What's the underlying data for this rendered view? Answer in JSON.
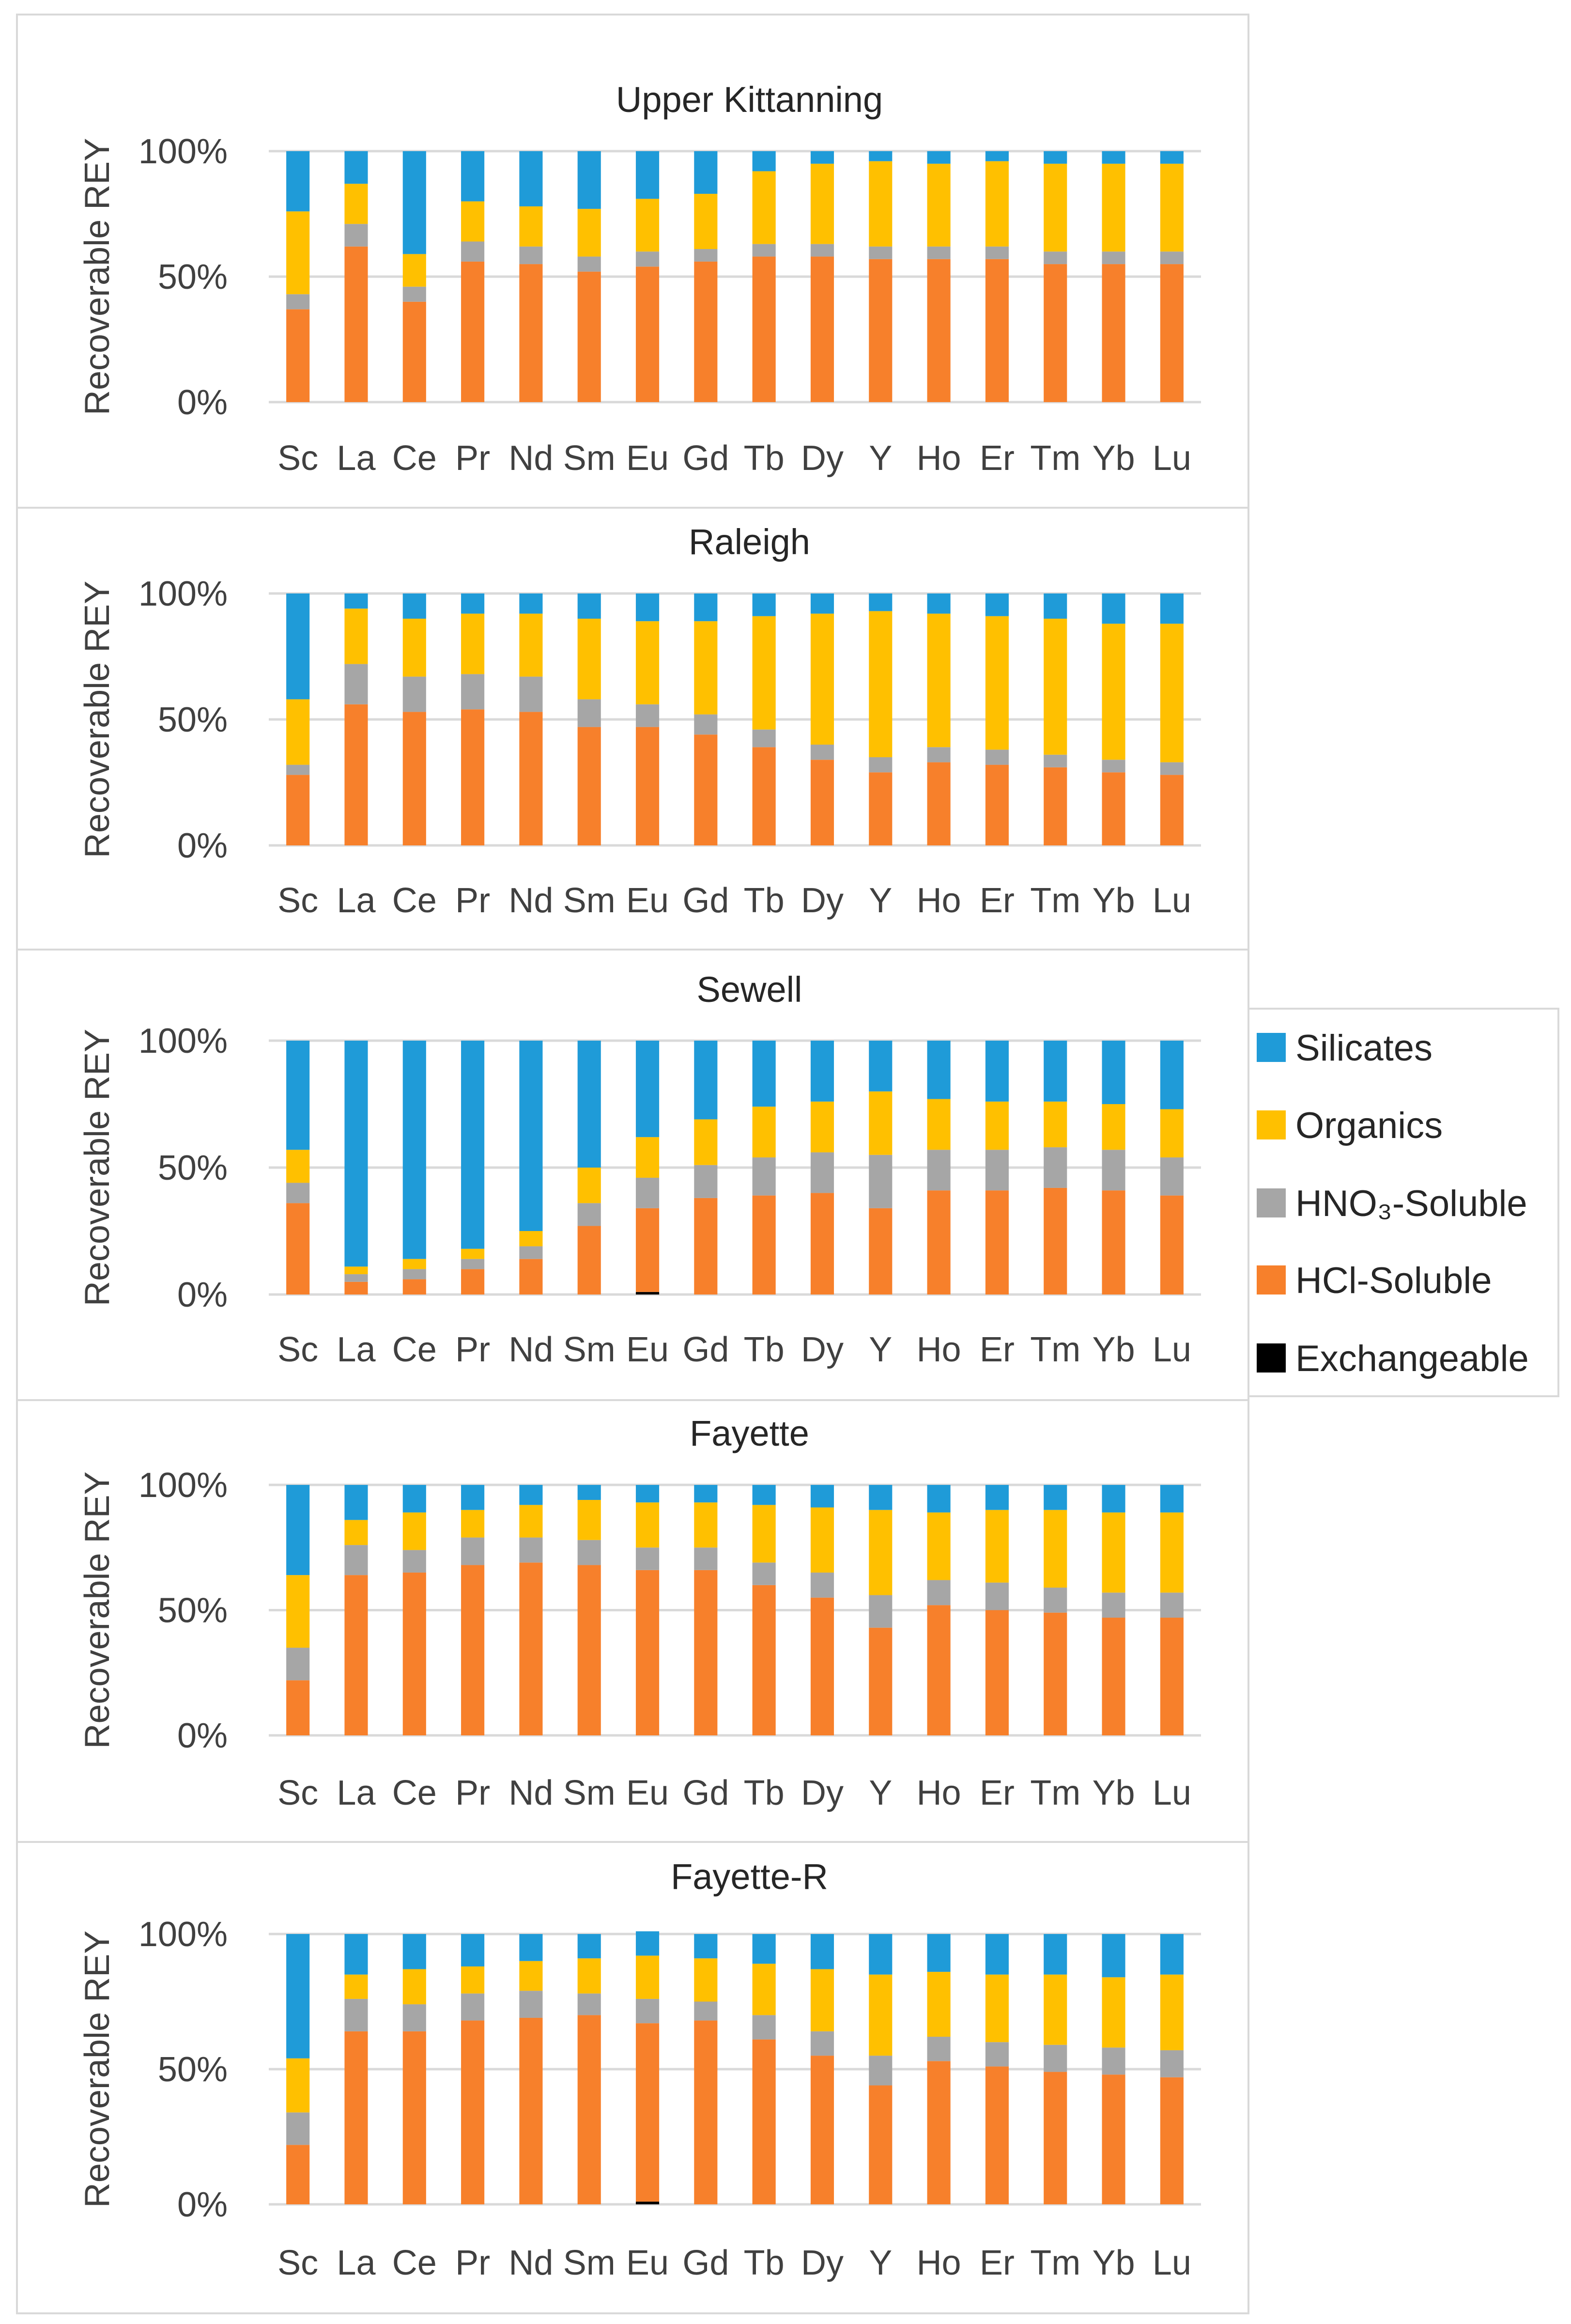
{
  "colors": {
    "Exchangeable": "#000000",
    "HCl-Soluble": "#f7802b",
    "HNO₃-Soluble": "#a6a6a6",
    "Organics": "#ffc000",
    "Silicates": "#1f9bd8"
  },
  "chart_data": [
    {
      "type": "bar",
      "stacked": true,
      "title": "Upper Kittanning",
      "ylabel": "Recoverable REY",
      "ylim": [
        0,
        100
      ],
      "yticks": [
        "0%",
        "50%",
        "100%"
      ],
      "categories": [
        "Sc",
        "La",
        "Ce",
        "Pr",
        "Nd",
        "Sm",
        "Eu",
        "Gd",
        "Tb",
        "Dy",
        "Y",
        "Ho",
        "Er",
        "Tm",
        "Yb",
        "Lu"
      ],
      "series": [
        {
          "name": "Exchangeable",
          "values": [
            0,
            0,
            0,
            0,
            0,
            0,
            0,
            0,
            0,
            0,
            0,
            0,
            0,
            0,
            0,
            0
          ]
        },
        {
          "name": "HCl-Soluble",
          "values": [
            37,
            62,
            40,
            56,
            55,
            52,
            54,
            56,
            58,
            58,
            57,
            57,
            57,
            55,
            55,
            55
          ]
        },
        {
          "name": "HNO₃-Soluble",
          "values": [
            6,
            9,
            6,
            8,
            7,
            6,
            6,
            5,
            5,
            5,
            5,
            5,
            5,
            5,
            5,
            5
          ]
        },
        {
          "name": "Organics",
          "values": [
            33,
            16,
            13,
            16,
            16,
            19,
            21,
            22,
            29,
            32,
            34,
            33,
            34,
            35,
            35,
            35
          ]
        },
        {
          "name": "Silicates",
          "values": [
            24,
            13,
            41,
            20,
            22,
            23,
            19,
            17,
            8,
            5,
            4,
            5,
            4,
            5,
            5,
            5
          ]
        }
      ]
    },
    {
      "type": "bar",
      "stacked": true,
      "title": "Raleigh",
      "ylabel": "Recoverable REY",
      "ylim": [
        0,
        100
      ],
      "yticks": [
        "0%",
        "50%",
        "100%"
      ],
      "categories": [
        "Sc",
        "La",
        "Ce",
        "Pr",
        "Nd",
        "Sm",
        "Eu",
        "Gd",
        "Tb",
        "Dy",
        "Y",
        "Ho",
        "Er",
        "Tm",
        "Yb",
        "Lu"
      ],
      "series": [
        {
          "name": "Exchangeable",
          "values": [
            0,
            0,
            0,
            0,
            0,
            0,
            0,
            0,
            0,
            0,
            0,
            0,
            0,
            0,
            0,
            0
          ]
        },
        {
          "name": "HCl-Soluble",
          "values": [
            28,
            56,
            53,
            54,
            53,
            47,
            47,
            44,
            39,
            34,
            29,
            33,
            32,
            31,
            29,
            28
          ]
        },
        {
          "name": "HNO₃-Soluble",
          "values": [
            4,
            16,
            14,
            14,
            14,
            11,
            9,
            8,
            7,
            6,
            6,
            6,
            6,
            5,
            5,
            5
          ]
        },
        {
          "name": "Organics",
          "values": [
            26,
            22,
            23,
            24,
            25,
            32,
            33,
            37,
            45,
            52,
            58,
            53,
            53,
            54,
            54,
            55
          ]
        },
        {
          "name": "Silicates",
          "values": [
            42,
            6,
            10,
            8,
            8,
            10,
            11,
            11,
            9,
            8,
            7,
            8,
            9,
            10,
            12,
            12
          ]
        }
      ]
    },
    {
      "type": "bar",
      "stacked": true,
      "title": "Sewell",
      "ylabel": "Recoverable REY",
      "ylim": [
        0,
        100
      ],
      "yticks": [
        "0%",
        "50%",
        "100%"
      ],
      "categories": [
        "Sc",
        "La",
        "Ce",
        "Pr",
        "Nd",
        "Sm",
        "Eu",
        "Gd",
        "Tb",
        "Dy",
        "Y",
        "Ho",
        "Er",
        "Tm",
        "Yb",
        "Lu"
      ],
      "series": [
        {
          "name": "Exchangeable",
          "values": [
            0,
            0,
            0,
            0,
            0,
            0,
            1,
            0,
            0,
            0,
            0,
            0,
            0,
            0,
            0,
            0
          ]
        },
        {
          "name": "HCl-Soluble",
          "values": [
            36,
            5,
            6,
            10,
            14,
            27,
            33,
            38,
            39,
            40,
            34,
            41,
            41,
            42,
            41,
            39
          ]
        },
        {
          "name": "HNO₃-Soluble",
          "values": [
            8,
            3,
            4,
            4,
            5,
            9,
            12,
            13,
            15,
            16,
            21,
            16,
            16,
            16,
            16,
            15
          ]
        },
        {
          "name": "Organics",
          "values": [
            13,
            3,
            4,
            4,
            6,
            14,
            16,
            18,
            20,
            20,
            25,
            20,
            19,
            18,
            18,
            19
          ]
        },
        {
          "name": "Silicates",
          "values": [
            43,
            89,
            86,
            82,
            75,
            50,
            38,
            31,
            26,
            24,
            20,
            23,
            24,
            24,
            25,
            27
          ]
        }
      ]
    },
    {
      "type": "bar",
      "stacked": true,
      "title": "Fayette",
      "ylabel": "Recoverable REY",
      "ylim": [
        0,
        100
      ],
      "yticks": [
        "0%",
        "50%",
        "100%"
      ],
      "categories": [
        "Sc",
        "La",
        "Ce",
        "Pr",
        "Nd",
        "Sm",
        "Eu",
        "Gd",
        "Tb",
        "Dy",
        "Y",
        "Ho",
        "Er",
        "Tm",
        "Yb",
        "Lu"
      ],
      "series": [
        {
          "name": "Exchangeable",
          "values": [
            0,
            0,
            0,
            0,
            0,
            0,
            0,
            0,
            0,
            0,
            0,
            0,
            0,
            0,
            0,
            0
          ]
        },
        {
          "name": "HCl-Soluble",
          "values": [
            22,
            64,
            65,
            68,
            69,
            68,
            66,
            66,
            60,
            55,
            43,
            52,
            50,
            49,
            47,
            47
          ]
        },
        {
          "name": "HNO₃-Soluble",
          "values": [
            13,
            12,
            9,
            11,
            10,
            10,
            9,
            9,
            9,
            10,
            13,
            10,
            11,
            10,
            10,
            10
          ]
        },
        {
          "name": "Organics",
          "values": [
            29,
            10,
            15,
            11,
            13,
            16,
            18,
            18,
            23,
            26,
            34,
            27,
            29,
            31,
            32,
            32
          ]
        },
        {
          "name": "Silicates",
          "values": [
            36,
            14,
            11,
            10,
            8,
            6,
            7,
            7,
            8,
            9,
            10,
            11,
            10,
            10,
            11,
            11
          ]
        }
      ]
    },
    {
      "type": "bar",
      "stacked": true,
      "title": "Fayette-R",
      "ylabel": "Recoverable REY",
      "ylim": [
        0,
        100
      ],
      "yticks": [
        "0%",
        "50%",
        "100%"
      ],
      "categories": [
        "Sc",
        "La",
        "Ce",
        "Pr",
        "Nd",
        "Sm",
        "Eu",
        "Gd",
        "Tb",
        "Dy",
        "Y",
        "Ho",
        "Er",
        "Tm",
        "Yb",
        "Lu"
      ],
      "series": [
        {
          "name": "Exchangeable",
          "values": [
            0,
            0,
            0,
            0,
            0,
            0,
            1,
            0,
            0,
            0,
            0,
            0,
            0,
            0,
            0,
            0
          ]
        },
        {
          "name": "HCl-Soluble",
          "values": [
            22,
            64,
            64,
            68,
            69,
            70,
            66,
            68,
            61,
            55,
            44,
            53,
            51,
            49,
            48,
            47
          ]
        },
        {
          "name": "HNO₃-Soluble",
          "values": [
            12,
            12,
            10,
            10,
            10,
            8,
            9,
            7,
            9,
            9,
            11,
            9,
            9,
            10,
            10,
            10
          ]
        },
        {
          "name": "Organics",
          "values": [
            20,
            9,
            13,
            10,
            11,
            13,
            16,
            16,
            19,
            23,
            30,
            24,
            25,
            26,
            26,
            28
          ]
        },
        {
          "name": "Silicates",
          "values": [
            46,
            15,
            13,
            12,
            10,
            9,
            9,
            9,
            11,
            13,
            15,
            14,
            15,
            15,
            16,
            15
          ]
        }
      ]
    }
  ],
  "legend": {
    "position": "right",
    "items": [
      {
        "key": "Silicates",
        "label": "Silicates"
      },
      {
        "key": "Organics",
        "label": "Organics"
      },
      {
        "key": "HNO₃-Soluble",
        "label": "HNO₃-Soluble"
      },
      {
        "key": "HCl-Soluble",
        "label": "HCl-Soluble"
      },
      {
        "key": "Exchangeable",
        "label": "Exchangeable"
      }
    ]
  }
}
